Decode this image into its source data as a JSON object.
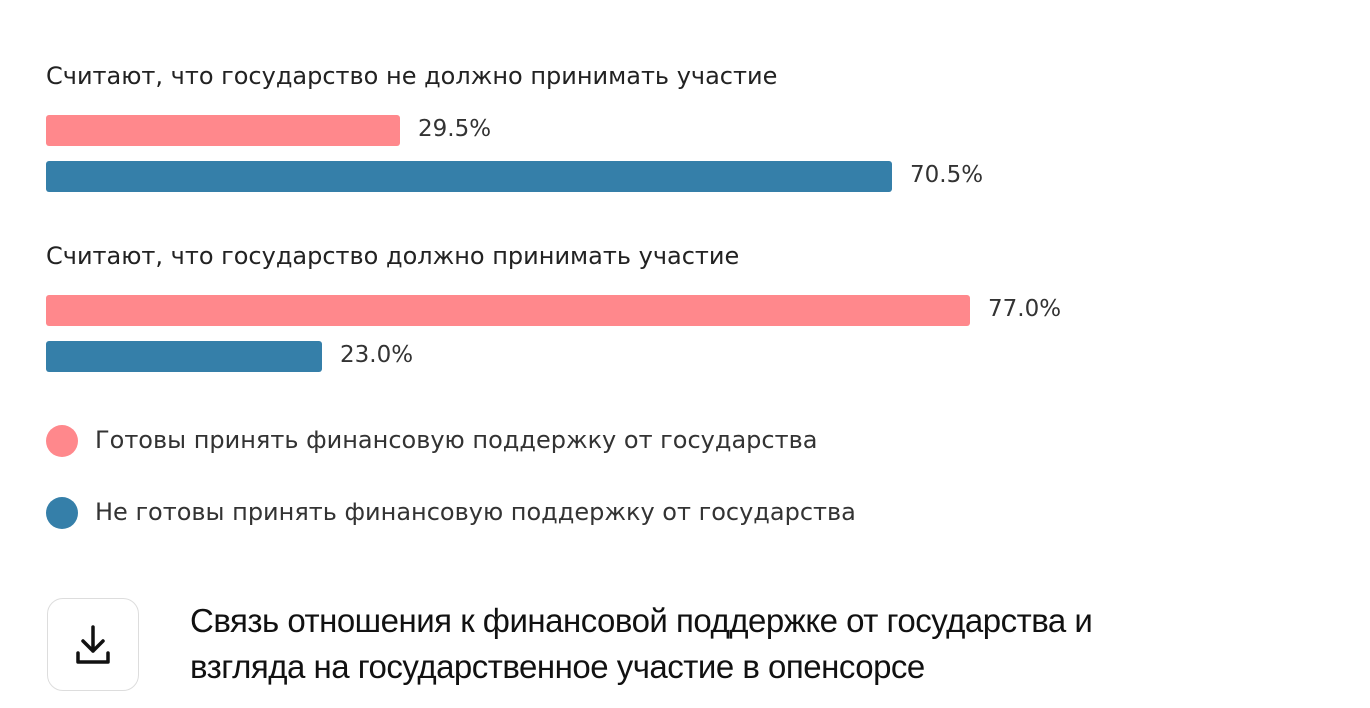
{
  "chart_data": {
    "type": "bar",
    "orientation": "horizontal",
    "title": "Связь отношения к финансовой поддержке от государства и взгляда на государственное участие в опенсорсе",
    "categories": [
      "Считают, что государство не должно принимать участие",
      "Считают, что государство должно принимать участие"
    ],
    "series": [
      {
        "name": "Готовы принять финансовую поддержку от государства",
        "color": "#ff888c",
        "values": [
          29.5,
          77.0
        ],
        "value_labels": [
          "29.5%",
          "77.0%"
        ]
      },
      {
        "name": "Не готовы принять финансовую поддержку от государства",
        "color": "#357fa9",
        "values": [
          70.5,
          23.0
        ],
        "value_labels": [
          "70.5%",
          "23.0%"
        ]
      }
    ]
  }
}
